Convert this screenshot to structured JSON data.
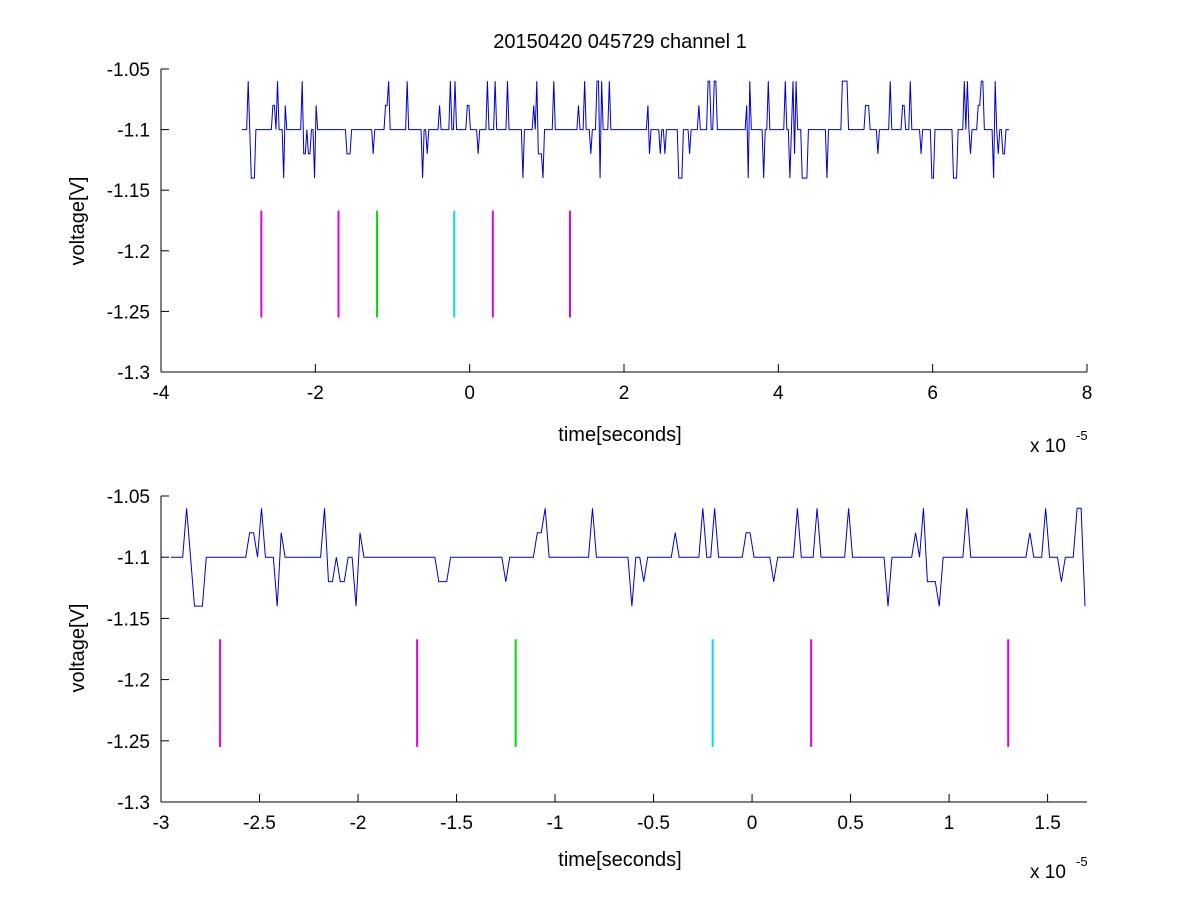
{
  "chart_data": [
    {
      "type": "line",
      "title": "20150420 045729 channel 1",
      "xlabel": "time[seconds]",
      "ylabel": "voltage[V]",
      "x_exponent_label": "x 10",
      "x_exponent_power": "-5",
      "xlim": [
        -4,
        8
      ],
      "ylim": [
        -1.3,
        -1.05
      ],
      "x_ticks": [
        -4,
        -2,
        0,
        2,
        4,
        6,
        8
      ],
      "x_tick_labels": [
        "-4",
        "-2",
        "0",
        "2",
        "4",
        "6",
        "8"
      ],
      "y_ticks": [
        -1.3,
        -1.25,
        -1.2,
        -1.15,
        -1.1,
        -1.05
      ],
      "y_tick_labels": [
        "-1.3",
        "-1.25",
        "-1.2",
        "-1.15",
        "-1.1",
        "-1.05"
      ],
      "grid": false,
      "series": [
        {
          "color": "#0000cc",
          "x_range": [
            -2.95,
            7.0
          ],
          "baseline": -1.1,
          "levels": [
            -1.14,
            -1.12,
            -1.1,
            -1.08,
            -1.06
          ],
          "seed": 7,
          "step": 0.02
        }
      ],
      "markers": [
        {
          "x": -2.7,
          "y_range": [
            -1.255,
            -1.167
          ],
          "color": "#e000e0"
        },
        {
          "x": -1.7,
          "y_range": [
            -1.255,
            -1.167
          ],
          "color": "#e000e0"
        },
        {
          "x": -1.2,
          "y_range": [
            -1.255,
            -1.167
          ],
          "color": "#00dd00"
        },
        {
          "x": -0.2,
          "y_range": [
            -1.255,
            -1.167
          ],
          "color": "#00e0e0"
        },
        {
          "x": 0.3,
          "y_range": [
            -1.255,
            -1.167
          ],
          "color": "#e000e0"
        },
        {
          "x": 1.3,
          "y_range": [
            -1.255,
            -1.167
          ],
          "color": "#e000e0"
        }
      ]
    },
    {
      "type": "line",
      "title": "",
      "xlabel": "time[seconds]",
      "ylabel": "voltage[V]",
      "x_exponent_label": "x 10",
      "x_exponent_power": "-5",
      "xlim": [
        -3.0,
        1.7
      ],
      "ylim": [
        -1.3,
        -1.05
      ],
      "x_ticks": [
        -3,
        -2.5,
        -2,
        -1.5,
        -1,
        -0.5,
        0,
        0.5,
        1,
        1.5
      ],
      "x_tick_labels": [
        "-3",
        "-2.5",
        "-2",
        "-1.5",
        "-1",
        "-0.5",
        "0",
        "0.5",
        "1",
        "1.5"
      ],
      "y_ticks": [
        -1.3,
        -1.25,
        -1.2,
        -1.15,
        -1.1,
        -1.05
      ],
      "y_tick_labels": [
        "-1.3",
        "-1.25",
        "-1.2",
        "-1.15",
        "-1.1",
        "-1.05"
      ],
      "grid": false,
      "series": [
        {
          "color": "#0000cc",
          "x_range": [
            -2.95,
            1.7
          ],
          "baseline": -1.1,
          "levels": [
            -1.14,
            -1.12,
            -1.1,
            -1.08,
            -1.06
          ],
          "seed": 7,
          "step": 0.02
        }
      ],
      "markers": [
        {
          "x": -2.7,
          "y_range": [
            -1.255,
            -1.167
          ],
          "color": "#e000e0"
        },
        {
          "x": -1.7,
          "y_range": [
            -1.255,
            -1.167
          ],
          "color": "#e000e0"
        },
        {
          "x": -1.2,
          "y_range": [
            -1.255,
            -1.167
          ],
          "color": "#00dd00"
        },
        {
          "x": -0.2,
          "y_range": [
            -1.255,
            -1.167
          ],
          "color": "#00e0e0"
        },
        {
          "x": 0.3,
          "y_range": [
            -1.255,
            -1.167
          ],
          "color": "#e000e0"
        },
        {
          "x": 1.3,
          "y_range": [
            -1.255,
            -1.167
          ],
          "color": "#e000e0"
        }
      ]
    }
  ]
}
